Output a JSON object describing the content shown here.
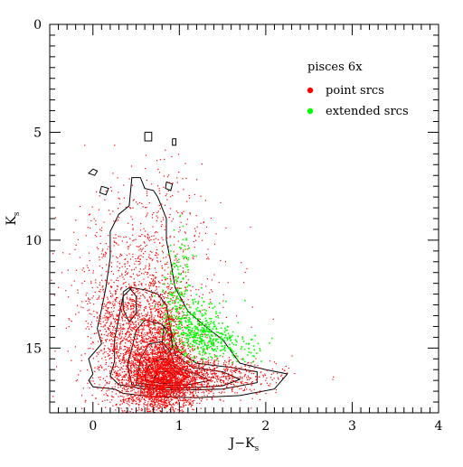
{
  "chart_data": {
    "type": "scatter",
    "title": "pisces 6x",
    "xlabel": "J−K",
    "xlabel_subscript": "s",
    "ylabel": "K",
    "ylabel_subscript": "s",
    "xlim": [
      -0.5,
      4.0
    ],
    "ylim": [
      18.0,
      0.0
    ],
    "y_inverted": true,
    "x_ticks": [
      0,
      1,
      2,
      3,
      4
    ],
    "x_tick_labels": [
      "0",
      "1",
      "2",
      "3",
      "4"
    ],
    "y_ticks": [
      0,
      5,
      10,
      15
    ],
    "y_tick_labels": [
      "0",
      "5",
      "10",
      "15"
    ],
    "x_minor_step": 0.1,
    "y_minor_step": 0.5,
    "grid": false,
    "legend_position": "top-right",
    "series": [
      {
        "name": "point srcs",
        "color": "#ff0000",
        "marker": "dot",
        "regions": [
          {
            "x": 0.8,
            "y": 16.4,
            "sx": 0.22,
            "sy": 0.8,
            "n": 2600
          },
          {
            "x": 0.55,
            "y": 15.4,
            "sx": 0.3,
            "sy": 1.5,
            "n": 1000
          },
          {
            "x": 0.45,
            "y": 13.8,
            "sx": 0.22,
            "sy": 1.0,
            "n": 500
          },
          {
            "x": 0.85,
            "y": 14.3,
            "sx": 0.12,
            "sy": 1.3,
            "n": 600
          },
          {
            "x": 1.35,
            "y": 16.3,
            "sx": 0.4,
            "sy": 0.45,
            "n": 700
          },
          {
            "x": 0.6,
            "y": 11.5,
            "sx": 0.45,
            "sy": 1.8,
            "n": 450
          },
          {
            "x": 0.3,
            "y": 12.5,
            "sx": 0.3,
            "sy": 2.5,
            "n": 250
          },
          {
            "x": 0.75,
            "y": 9.0,
            "sx": 0.25,
            "sy": 1.4,
            "n": 120
          }
        ]
      },
      {
        "name": "extended srcs",
        "color": "#00ff00",
        "marker": "dot",
        "regions": [
          {
            "x": 1.3,
            "y": 14.6,
            "sx": 0.16,
            "sy": 0.45,
            "n": 260
          },
          {
            "x": 1.15,
            "y": 13.6,
            "sx": 0.2,
            "sy": 0.6,
            "n": 180
          },
          {
            "x": 0.95,
            "y": 12.4,
            "sx": 0.06,
            "sy": 1.1,
            "n": 90
          },
          {
            "x": 1.65,
            "y": 14.9,
            "sx": 0.15,
            "sy": 0.35,
            "n": 70
          },
          {
            "x": 1.05,
            "y": 10.8,
            "sx": 0.07,
            "sy": 0.9,
            "n": 35
          }
        ]
      }
    ],
    "contours": [
      [
        [
          0.0,
          6.7
        ],
        [
          0.05,
          6.8
        ],
        [
          0.02,
          7.0
        ],
        [
          -0.05,
          6.9
        ],
        [
          0.0,
          6.7
        ]
      ],
      [
        [
          0.6,
          5.0
        ],
        [
          0.68,
          5.0
        ],
        [
          0.68,
          5.4
        ],
        [
          0.6,
          5.4
        ],
        [
          0.6,
          5.0
        ]
      ],
      [
        [
          0.92,
          5.3
        ],
        [
          0.96,
          5.3
        ],
        [
          0.96,
          5.6
        ],
        [
          0.92,
          5.6
        ],
        [
          0.92,
          5.3
        ]
      ],
      [
        [
          0.1,
          7.5
        ],
        [
          0.18,
          7.6
        ],
        [
          0.15,
          7.9
        ],
        [
          0.08,
          7.8
        ],
        [
          0.1,
          7.5
        ]
      ],
      [
        [
          0.85,
          7.3
        ],
        [
          0.92,
          7.4
        ],
        [
          0.9,
          7.7
        ],
        [
          0.84,
          7.6
        ],
        [
          0.85,
          7.3
        ]
      ],
      [
        [
          0.25,
          16.9
        ],
        [
          0.35,
          17.1
        ],
        [
          0.7,
          17.25
        ],
        [
          1.2,
          17.3
        ],
        [
          1.7,
          17.2
        ],
        [
          2.1,
          16.9
        ],
        [
          2.25,
          16.2
        ],
        [
          2.0,
          16.0
        ],
        [
          1.7,
          15.7
        ],
        [
          1.5,
          14.6
        ],
        [
          1.3,
          14.0
        ],
        [
          1.1,
          13.3
        ],
        [
          0.95,
          12.2
        ],
        [
          0.9,
          11.0
        ],
        [
          0.85,
          10.0
        ],
        [
          0.85,
          9.0
        ],
        [
          0.75,
          8.0
        ],
        [
          0.7,
          7.7
        ],
        [
          0.6,
          7.6
        ],
        [
          0.55,
          7.1
        ],
        [
          0.45,
          7.1
        ],
        [
          0.42,
          8.4
        ],
        [
          0.3,
          8.8
        ],
        [
          0.2,
          9.6
        ],
        [
          0.2,
          10.8
        ],
        [
          0.15,
          12.2
        ],
        [
          0.1,
          13.2
        ],
        [
          0.05,
          14.1
        ],
        [
          0.1,
          14.8
        ],
        [
          -0.05,
          15.5
        ],
        [
          0.0,
          16.2
        ],
        [
          -0.05,
          16.5
        ],
        [
          0.0,
          16.8
        ],
        [
          0.25,
          16.9
        ]
      ],
      [
        [
          0.3,
          16.7
        ],
        [
          0.6,
          16.9
        ],
        [
          1.0,
          16.95
        ],
        [
          1.5,
          16.9
        ],
        [
          1.9,
          16.6
        ],
        [
          1.9,
          16.1
        ],
        [
          1.6,
          15.9
        ],
        [
          1.2,
          15.7
        ],
        [
          1.0,
          15.2
        ],
        [
          0.9,
          14.2
        ],
        [
          0.85,
          13.0
        ],
        [
          0.75,
          12.5
        ],
        [
          0.6,
          12.3
        ],
        [
          0.45,
          12.2
        ],
        [
          0.35,
          12.6
        ],
        [
          0.3,
          13.6
        ],
        [
          0.25,
          14.6
        ],
        [
          0.25,
          15.6
        ],
        [
          0.2,
          16.3
        ],
        [
          0.3,
          16.7
        ]
      ],
      [
        [
          0.45,
          16.7
        ],
        [
          0.7,
          16.85
        ],
        [
          1.1,
          16.85
        ],
        [
          1.5,
          16.75
        ],
        [
          1.7,
          16.45
        ],
        [
          1.5,
          16.1
        ],
        [
          1.15,
          15.9
        ],
        [
          0.95,
          15.3
        ],
        [
          0.9,
          14.5
        ],
        [
          0.8,
          13.9
        ],
        [
          0.6,
          13.7
        ],
        [
          0.5,
          14.2
        ],
        [
          0.45,
          15.0
        ],
        [
          0.4,
          15.8
        ],
        [
          0.45,
          16.7
        ]
      ],
      [
        [
          0.5,
          16.6
        ],
        [
          0.75,
          16.75
        ],
        [
          1.1,
          16.7
        ],
        [
          1.35,
          16.5
        ],
        [
          1.2,
          16.2
        ],
        [
          0.95,
          15.9
        ],
        [
          0.9,
          15.2
        ],
        [
          0.8,
          14.7
        ],
        [
          0.65,
          14.8
        ],
        [
          0.55,
          15.5
        ],
        [
          0.5,
          16.6
        ]
      ],
      [
        [
          0.6,
          16.5
        ],
        [
          0.8,
          16.65
        ],
        [
          1.0,
          16.6
        ],
        [
          1.1,
          16.35
        ],
        [
          0.95,
          16.1
        ],
        [
          0.85,
          15.5
        ],
        [
          0.7,
          15.6
        ],
        [
          0.62,
          16.0
        ],
        [
          0.6,
          16.5
        ]
      ],
      [
        [
          0.7,
          16.4
        ],
        [
          0.85,
          16.5
        ],
        [
          0.95,
          16.35
        ],
        [
          0.88,
          16.1
        ],
        [
          0.75,
          16.1
        ],
        [
          0.7,
          16.4
        ]
      ],
      [
        [
          0.35,
          12.4
        ],
        [
          0.42,
          12.2
        ],
        [
          0.5,
          12.6
        ],
        [
          0.5,
          13.4
        ],
        [
          0.42,
          13.8
        ],
        [
          0.35,
          13.2
        ],
        [
          0.35,
          12.4
        ]
      ],
      [
        [
          0.82,
          14.0
        ],
        [
          0.9,
          14.2
        ],
        [
          0.92,
          15.0
        ],
        [
          0.85,
          15.3
        ],
        [
          0.8,
          14.8
        ],
        [
          0.82,
          14.0
        ]
      ]
    ]
  }
}
